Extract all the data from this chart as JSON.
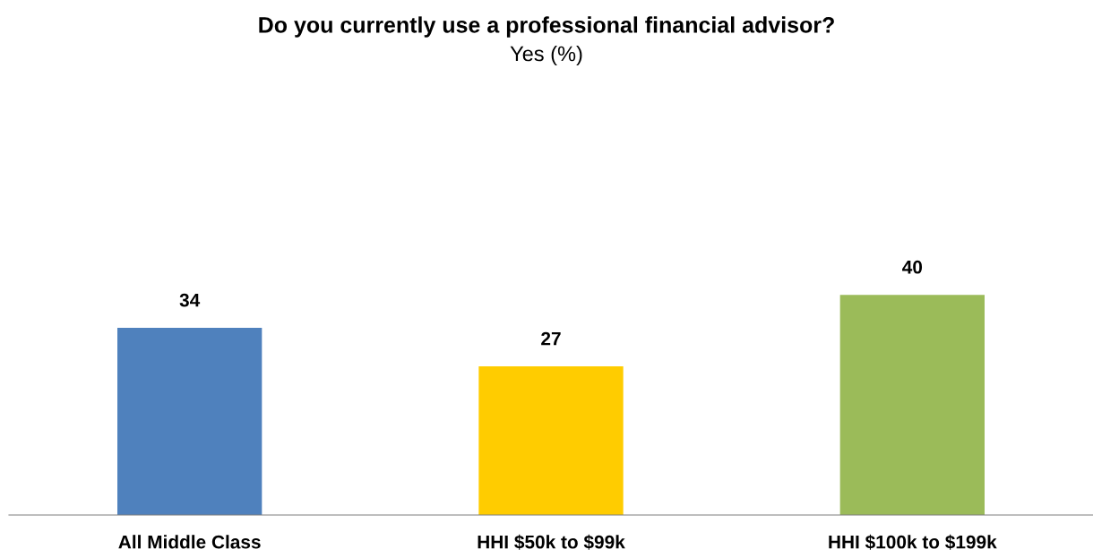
{
  "chart_data": {
    "type": "bar",
    "title": "Do you currently use a professional financial advisor?",
    "subtitle": "Yes (%)",
    "categories": [
      "All Middle Class",
      "HHI $50k to $99k",
      "HHI $100k to $199k"
    ],
    "values": [
      34,
      27,
      40
    ],
    "colors": [
      "#4f81bd",
      "#ffcc00",
      "#9bbb59"
    ],
    "data_labels": true,
    "grid": false,
    "legend": false
  }
}
